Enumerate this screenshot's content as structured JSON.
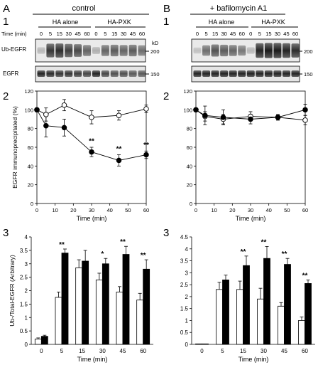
{
  "figure": {
    "panelA": {
      "letter": "A",
      "title": "control"
    },
    "panelB": {
      "letter": "B",
      "title": "+ bafilomycin A1"
    }
  },
  "blots": {
    "sub_number": "1",
    "group1": "HA alone",
    "group2": "HA-PXK",
    "time_label": "Time (min)",
    "times": [
      "0",
      "5",
      "15",
      "30",
      "45",
      "60"
    ],
    "row1_label": "Ub-EGFR",
    "row2_label": "EGFR",
    "kd_label": "kD",
    "kd_200": "200",
    "kd_150": "150"
  },
  "chart_data": [
    {
      "id": "A2",
      "type": "line",
      "sub_number": "2",
      "ylabel": "EGFR immunoprecipitated (%)",
      "xlabel": "Time (min)",
      "xlim": [
        0,
        60
      ],
      "ylim": [
        0,
        120
      ],
      "xticks": [
        0,
        10,
        20,
        30,
        40,
        50,
        60
      ],
      "yticks": [
        0,
        20,
        40,
        60,
        80,
        100,
        120
      ],
      "x": [
        0,
        5,
        15,
        30,
        45,
        60
      ],
      "series": [
        {
          "marker": "open-circle",
          "values": [
            100,
            95,
            105,
            92,
            94,
            101
          ],
          "err": [
            0,
            7,
            6,
            7,
            5,
            4
          ]
        },
        {
          "marker": "filled-circle",
          "values": [
            100,
            83,
            81,
            55,
            46,
            52
          ],
          "err": [
            0,
            12,
            9,
            5,
            6,
            4
          ]
        }
      ],
      "annotations": [
        {
          "x": 30,
          "y": 64,
          "text": "**"
        },
        {
          "x": 45,
          "y": 56,
          "text": "**"
        },
        {
          "x": 60,
          "y": 60,
          "text": "**"
        }
      ]
    },
    {
      "id": "B2",
      "type": "line",
      "sub_number": "2",
      "xlabel": "Time (min)",
      "xlim": [
        0,
        60
      ],
      "ylim": [
        0,
        120
      ],
      "xticks": [
        0,
        10,
        20,
        30,
        40,
        50,
        60
      ],
      "yticks": [
        0,
        20,
        40,
        60,
        80,
        100,
        120
      ],
      "x": [
        0,
        5,
        15,
        30,
        45,
        60
      ],
      "series": [
        {
          "marker": "open-circle",
          "values": [
            100,
            93,
            90,
            93,
            92,
            89
          ],
          "err": [
            0,
            5,
            5,
            5,
            3,
            5
          ]
        },
        {
          "marker": "filled-circle",
          "values": [
            100,
            94,
            92,
            90,
            92,
            100
          ],
          "err": [
            0,
            10,
            8,
            5,
            3,
            6
          ]
        }
      ],
      "annotations": []
    },
    {
      "id": "A3",
      "type": "bar",
      "sub_number": "3",
      "ylabel": "Ub-/Total-EGFR (Arbitrary)",
      "xlabel": "Time (min)",
      "categories": [
        "0",
        "5",
        "15",
        "30",
        "45",
        "60"
      ],
      "ylim": [
        0,
        4
      ],
      "yticks": [
        0,
        0.5,
        1,
        1.5,
        2,
        2.5,
        3,
        3.5,
        4
      ],
      "ytick_labels": [
        "0",
        "0.5",
        "1",
        "1.5",
        "2",
        "2.5",
        "3",
        "3.5",
        "4"
      ],
      "series": [
        {
          "fill": "open",
          "values": [
            0.2,
            1.75,
            2.85,
            2.4,
            1.95,
            1.65
          ],
          "err": [
            0.04,
            0.2,
            0.3,
            0.25,
            0.2,
            0.25
          ]
        },
        {
          "fill": "filled",
          "values": [
            0.3,
            3.4,
            3.1,
            3.0,
            3.35,
            2.8
          ],
          "err": [
            0.04,
            0.15,
            0.4,
            0.2,
            0.3,
            0.35
          ]
        }
      ],
      "annotations": [
        "",
        "**",
        "",
        "*",
        "**",
        "**"
      ]
    },
    {
      "id": "B3",
      "type": "bar",
      "sub_number": "3",
      "xlabel": "Time (min)",
      "categories": [
        "0",
        "5",
        "15",
        "30",
        "45",
        "60"
      ],
      "ylim": [
        0,
        4.5
      ],
      "yticks": [
        0,
        0.5,
        1,
        1.5,
        2,
        2.5,
        3,
        3.5,
        4,
        4.5
      ],
      "ytick_labels": [
        "0",
        "0.5",
        "1",
        "1.5",
        "2",
        "2.5",
        "3",
        "3.5",
        "4",
        "4.5"
      ],
      "series": [
        {
          "fill": "open",
          "values": [
            0.02,
            2.3,
            2.3,
            1.9,
            1.6,
            1.0
          ],
          "err": [
            0,
            0.3,
            0.35,
            0.45,
            0.15,
            0.15
          ]
        },
        {
          "fill": "filled",
          "values": [
            0.02,
            2.7,
            3.3,
            3.6,
            3.35,
            2.55
          ],
          "err": [
            0,
            0.2,
            0.4,
            0.5,
            0.25,
            0.15
          ]
        }
      ],
      "annotations": [
        "",
        "",
        "**",
        "**",
        "**",
        "**"
      ]
    }
  ]
}
